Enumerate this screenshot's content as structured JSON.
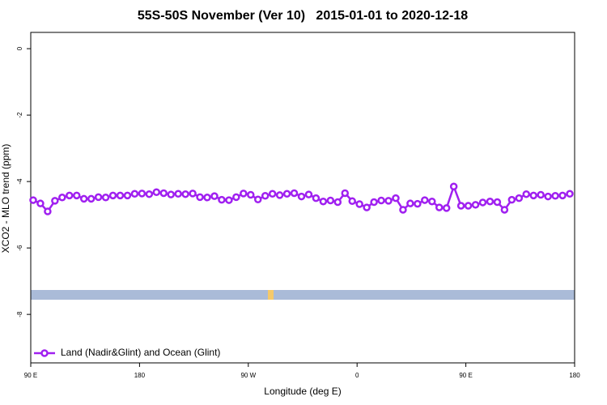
{
  "chart_data": {
    "type": "line",
    "title": "55S-50S November (Ver 10)   2015-01-01 to 2020-12-18",
    "xlabel": "Longitude (deg E)",
    "ylabel": "XCO2 - MLO trend (ppm)",
    "xlim": [
      90,
      540
    ],
    "ylim": [
      -9.46,
      0.49
    ],
    "xticks": [
      {
        "value": 90,
        "label": "90 E"
      },
      {
        "value": 180,
        "label": "180"
      },
      {
        "value": 270,
        "label": "90 W"
      },
      {
        "value": 360,
        "label": "0"
      },
      {
        "value": 450,
        "label": "90 E"
      },
      {
        "value": 540,
        "label": "180"
      }
    ],
    "yticks": [
      0,
      -2,
      -4,
      -6,
      -8
    ],
    "legend": "bottom-left",
    "x": [
      92,
      98,
      104,
      110,
      116,
      122,
      128,
      134,
      140,
      146,
      152,
      158,
      164,
      170,
      176,
      182,
      188,
      194,
      200,
      206,
      212,
      218,
      224,
      230,
      236,
      242,
      248,
      254,
      260,
      266,
      272,
      278,
      284,
      290,
      296,
      302,
      308,
      314,
      320,
      326,
      332,
      338,
      344,
      350,
      356,
      362,
      368,
      374,
      380,
      386,
      392,
      398,
      404,
      410,
      416,
      422,
      428,
      434,
      440,
      446,
      452,
      458,
      464,
      470,
      476,
      482,
      488,
      494,
      500,
      506,
      512,
      518,
      524,
      530,
      536
    ],
    "series": [
      {
        "name": "Land (Nadir&Glint) and Ocean (Glint)",
        "color": "#a020f0",
        "values": [
          -4.56,
          -4.66,
          -4.9,
          -4.58,
          -4.48,
          -4.42,
          -4.42,
          -4.52,
          -4.52,
          -4.47,
          -4.48,
          -4.42,
          -4.42,
          -4.42,
          -4.37,
          -4.36,
          -4.38,
          -4.32,
          -4.35,
          -4.39,
          -4.37,
          -4.38,
          -4.36,
          -4.47,
          -4.48,
          -4.44,
          -4.55,
          -4.56,
          -4.47,
          -4.36,
          -4.4,
          -4.54,
          -4.43,
          -4.37,
          -4.41,
          -4.37,
          -4.35,
          -4.45,
          -4.39,
          -4.5,
          -4.6,
          -4.57,
          -4.62,
          -4.35,
          -4.59,
          -4.68,
          -4.78,
          -4.62,
          -4.57,
          -4.58,
          -4.5,
          -4.85,
          -4.66,
          -4.67,
          -4.56,
          -4.6,
          -4.78,
          -4.8,
          -4.15,
          -4.73,
          -4.73,
          -4.7,
          -4.63,
          -4.6,
          -4.62,
          -4.85,
          -4.55,
          -4.5,
          -4.38,
          -4.42,
          -4.4,
          -4.45,
          -4.43,
          -4.42,
          -4.37
        ]
      }
    ]
  }
}
